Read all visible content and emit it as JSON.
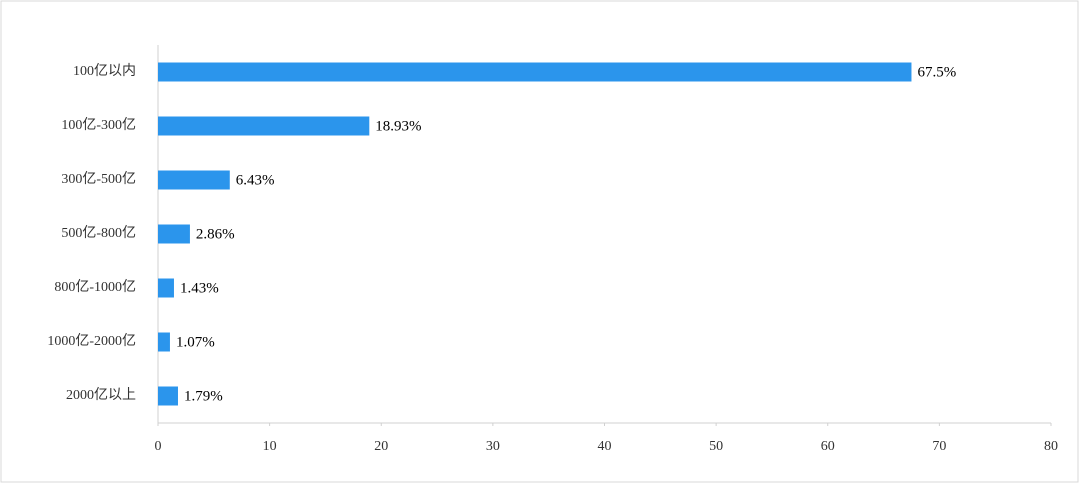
{
  "chart_data": {
    "type": "bar",
    "orientation": "horizontal",
    "categories": [
      "100亿以内",
      "100亿-300亿",
      "300亿-500亿",
      "500亿-800亿",
      "800亿-1000亿",
      "1000亿-2000亿",
      "2000亿以上"
    ],
    "values": [
      67.5,
      18.93,
      6.43,
      2.86,
      1.43,
      1.07,
      1.79
    ],
    "value_labels": [
      "67.5%",
      "18.93%",
      "6.43%",
      "2.86%",
      "1.43%",
      "1.07%",
      "1.79%"
    ],
    "color": "#2b95ec",
    "xlim": [
      0,
      80
    ],
    "xticks": [
      0,
      10,
      20,
      30,
      40,
      50,
      60,
      70,
      80
    ],
    "grid": false
  }
}
